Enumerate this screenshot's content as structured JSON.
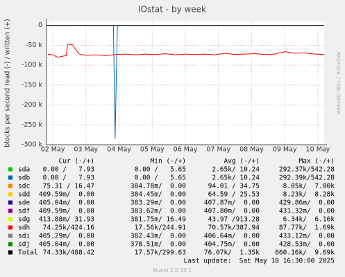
{
  "chart_data": {
    "type": "line",
    "title": "IOstat - by week",
    "y_label": "blocks per second read (-) / written (+)",
    "side_label": "RRDTOOL / TOBI OETIKER",
    "xlim": [
      1.81,
      10.19
    ],
    "xticks": [
      {
        "value": 2,
        "label": "02 May"
      },
      {
        "value": 3,
        "label": "03 May"
      },
      {
        "value": 4,
        "label": "04 May"
      },
      {
        "value": 5,
        "label": "05 May"
      },
      {
        "value": 6,
        "label": "06 May"
      },
      {
        "value": 7,
        "label": "07 May"
      },
      {
        "value": 8,
        "label": "08 May"
      },
      {
        "value": 9,
        "label": "09 May"
      },
      {
        "value": 10,
        "label": "10 May"
      }
    ],
    "ylim": [
      -300000,
      10000
    ],
    "yticks": [
      0,
      {
        "value": -50000,
        "label": "-50 k"
      },
      {
        "value": -100000,
        "label": "-100 k"
      },
      {
        "value": -150000,
        "label": "-150 k"
      },
      {
        "value": -200000,
        "label": "-200 k"
      },
      {
        "value": -250000,
        "label": "-250 k"
      },
      {
        "value": -300000,
        "label": "-300 k"
      }
    ],
    "grid": true,
    "stat_headers": [
      "Cur (-/+)",
      "Min (-/+)",
      "Avg (-/+)",
      "Max (-/+)"
    ],
    "series": [
      {
        "name": "sda",
        "color": "#00cc00",
        "stats": [
          "0.00 /   7.93",
          "0.00 /   5.65",
          "2.65k/ 10.24",
          "292.37k/542.28"
        ]
      },
      {
        "name": "sdb",
        "color": "#0066b3",
        "stats": [
          "0.00 /   7.93",
          "0.00 /   5.65",
          "2.65k/ 10.24",
          "292.39k/542.28"
        ],
        "x": [
          1.81,
          3.83,
          3.88,
          3.95,
          10.19
        ],
        "values": [
          0,
          0,
          -285000,
          0,
          0
        ]
      },
      {
        "name": "sdc",
        "color": "#ff8000",
        "stats": [
          "75.31 / 16.47",
          "384.78m/  0.00",
          "94.01 / 34.75",
          "8.05k/  7.00k"
        ]
      },
      {
        "name": "sdd",
        "color": "#ffcc00",
        "stats": [
          "409.59m/  0.00",
          "384.45m/  0.00",
          "64.59 / 25.53",
          "8.23k/  8.28k"
        ]
      },
      {
        "name": "sde",
        "color": "#330099",
        "stats": [
          "405.04m/  0.00",
          "383.29m/  0.00",
          "407.87m/  0.00",
          "429.86m/  0.00"
        ]
      },
      {
        "name": "sdf",
        "color": "#990099",
        "stats": [
          "409.59m/  0.00",
          "383.62m/  0.00",
          "407.80m/  0.00",
          "431.32m/  0.00"
        ]
      },
      {
        "name": "sdg",
        "color": "#ccff00",
        "stats": [
          "413.88m/ 31.93",
          "381.75m/ 16.49",
          "43.97 /913.28",
          "6.34k/  6.16k"
        ]
      },
      {
        "name": "sdh",
        "color": "#ff0000",
        "stats": [
          "74.25k/424.16",
          "17.56k/244.91",
          "70.57k/387.94",
          "87.77k/  1.69k"
        ],
        "x": [
          1.85,
          2.0,
          2.15,
          2.25,
          2.4,
          2.45,
          2.6,
          2.7,
          2.8,
          3.0,
          3.3,
          3.6,
          3.9,
          4.2,
          4.5,
          4.8,
          5.1,
          5.4,
          5.7,
          6.0,
          6.3,
          6.6,
          6.9,
          7.2,
          7.5,
          7.8,
          8.1,
          8.4,
          8.7,
          9.0,
          9.3,
          9.6,
          9.9,
          10.19
        ],
        "values": [
          -72000,
          -74000,
          -80000,
          -78000,
          -76000,
          -47000,
          -49000,
          -62000,
          -72000,
          -75000,
          -74000,
          -76000,
          -73000,
          -72000,
          -74000,
          -72000,
          -73000,
          -71000,
          -74000,
          -72000,
          -73000,
          -72000,
          -74000,
          -70000,
          -73000,
          -72000,
          -71000,
          -73000,
          -72000,
          -66000,
          -70000,
          -69000,
          -72000,
          -73000
        ]
      },
      {
        "name": "sdi",
        "color": "#808080",
        "stats": [
          "405.29m/  0.00",
          "382.43m/  0.00",
          "406.64m/  0.00",
          "433.12m/  0.00"
        ]
      },
      {
        "name": "sdj",
        "color": "#008f00",
        "stats": [
          "405.04m/  0.00",
          "378.51m/  0.00",
          "404.75m/  0.00",
          "428.53m/  0.00"
        ]
      }
    ],
    "total": {
      "name": "Total",
      "color": "#000000",
      "stats": [
        "74.33k/488.42",
        "17.57k/299.63",
        "76.07k/  1.35k",
        "660.16k/  9.69k"
      ]
    },
    "last_update": "Last update:  Sat May 10 16:30:00 2025",
    "footer": "Munin 2.0.33-1"
  }
}
